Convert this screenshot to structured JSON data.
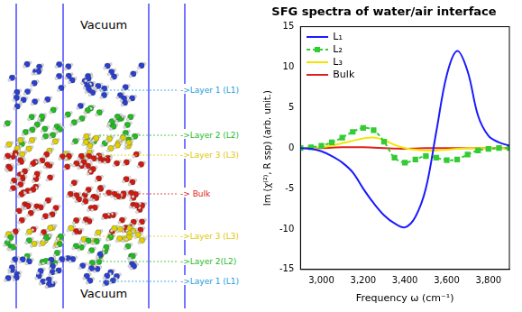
{
  "chart_data": {
    "type": "line",
    "title": "SFG spectra of water/air interface",
    "x_label": "Frequency ω (cm⁻¹)",
    "y_label": "Im (χ⁽²⁾, R ssp) (arb. unit.)",
    "x": [
      2900,
      2950,
      3000,
      3050,
      3100,
      3150,
      3200,
      3250,
      3300,
      3350,
      3400,
      3450,
      3500,
      3550,
      3600,
      3650,
      3700,
      3750,
      3800,
      3850,
      3900
    ],
    "series": [
      {
        "name": "L₁",
        "color": "#1a1aff",
        "line_style": "solid",
        "marker": "none",
        "values": [
          0,
          -0.1,
          -0.4,
          -1.0,
          -1.8,
          -3.0,
          -5.0,
          -6.8,
          -8.3,
          -9.3,
          -9.8,
          -8.5,
          -5.0,
          2.0,
          9.0,
          12.0,
          9.5,
          4.0,
          1.5,
          0.7,
          0.3
        ]
      },
      {
        "name": "L₂",
        "color": "#33cc33",
        "line_style": "dashed",
        "marker": "square",
        "values": [
          0,
          0.1,
          0.3,
          0.7,
          1.3,
          2.0,
          2.5,
          2.2,
          0.8,
          -1.2,
          -1.8,
          -1.4,
          -1.0,
          -1.2,
          -1.5,
          -1.4,
          -0.8,
          -0.3,
          -0.1,
          0,
          0
        ]
      },
      {
        "name": "L₃",
        "color": "#f2e600",
        "line_style": "solid",
        "marker": "none",
        "values": [
          0,
          0,
          0.1,
          0.3,
          0.6,
          0.9,
          1.2,
          1.3,
          1.0,
          0.4,
          0,
          -0.2,
          -0.3,
          -0.3,
          -0.2,
          -0.1,
          0,
          0,
          0,
          0,
          0
        ]
      },
      {
        "name": "Bulk",
        "color": "#e0201a",
        "line_style": "solid",
        "marker": "none",
        "values": [
          0,
          0,
          0,
          0.05,
          0.1,
          0.1,
          0.1,
          0.05,
          0,
          -0.05,
          -0.1,
          -0.05,
          0,
          0,
          0,
          0,
          0,
          0,
          0,
          0,
          0
        ]
      }
    ],
    "xlim": [
      2900,
      3900
    ],
    "xticks": [
      3000,
      3200,
      3400,
      3600,
      3800
    ],
    "ylim": [
      -15,
      15
    ],
    "yticks": [
      -15,
      -10,
      -5,
      0,
      5,
      10,
      15
    ],
    "grid": false,
    "legend": "top-left"
  },
  "diagram": {
    "region_labels": [
      "Vacuum",
      "Vacuum"
    ],
    "layer_labels": [
      {
        "text": "->Layer 1 (L1)",
        "color": "#1a9be0"
      },
      {
        "text": "->Layer 2 (L2)",
        "color": "#22bb22"
      },
      {
        "text": "->Layer 3 (L3)",
        "color": "#e0c800"
      },
      {
        "text": "-> Bulk",
        "color": "#e0201a"
      },
      {
        "text": "->Layer 3 (L3)",
        "color": "#e0c800"
      },
      {
        "text": "->Layer 2(L2)",
        "color": "#22bb22"
      },
      {
        "text": "->Layer 1 (L1)",
        "color": "#1a9be0"
      }
    ]
  }
}
